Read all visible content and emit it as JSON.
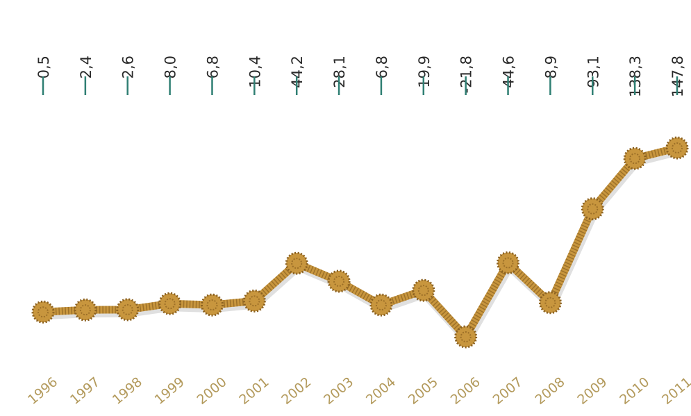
{
  "chart_data": {
    "type": "line",
    "categories": [
      "1996",
      "1997",
      "1998",
      "1999",
      "2000",
      "2001",
      "2002",
      "2003",
      "2004",
      "2005",
      "2006",
      "2007",
      "2008",
      "2009",
      "2010",
      "2011"
    ],
    "values": [
      0.5,
      2.4,
      2.6,
      8.0,
      6.8,
      10.4,
      44.2,
      28.1,
      6.8,
      19.9,
      -21.8,
      44.6,
      8.9,
      93.1,
      138.3,
      147.8
    ],
    "value_labels": [
      "0,5",
      "2,4",
      "2,6",
      "8,0",
      "6,8",
      "10,4",
      "44,2",
      "28,1",
      "6,8",
      "19,9",
      "-21,8",
      "44,6",
      "8,9",
      "93,1",
      "138,3",
      "147,8"
    ],
    "color": "#c8963e"
  }
}
